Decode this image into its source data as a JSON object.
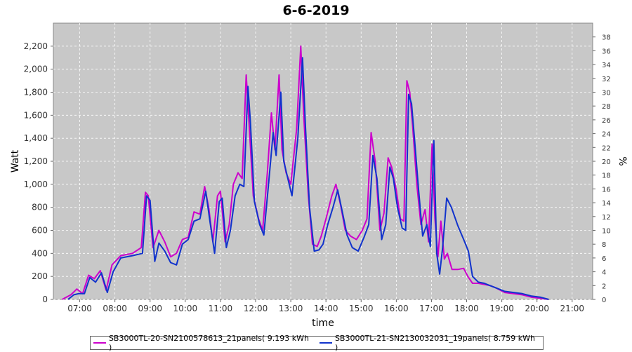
{
  "chart_data": {
    "type": "line",
    "title": "6-6-2019",
    "xlabel": "time",
    "ylabel": "Watt",
    "y2label": "%",
    "ylim": [
      0,
      2400
    ],
    "y2lim": [
      0,
      40
    ],
    "x_ticks": [
      "07:00",
      "08:00",
      "09:00",
      "10:00",
      "11:00",
      "12:00",
      "13:00",
      "14:00",
      "15:00",
      "16:00",
      "17:00",
      "18:00",
      "19:00",
      "20:00",
      "21:00"
    ],
    "y_ticks": [
      "0",
      "200",
      "400",
      "600",
      "800",
      "1,000",
      "1,200",
      "1,400",
      "1,600",
      "1,800",
      "2,000",
      "2,200"
    ],
    "y2_ticks": [
      "0",
      "2",
      "4",
      "6",
      "8",
      "10",
      "12",
      "14",
      "16",
      "18",
      "20",
      "22",
      "24",
      "26",
      "28",
      "30",
      "32",
      "34",
      "36",
      "38"
    ],
    "grid": true,
    "legend_position": "bottom",
    "series": [
      {
        "name": "SB3000TL-20-SN2100578613_21panels( 9.193 kWh )",
        "color": "#cc00cc",
        "points": [
          [
            "06:30",
            0
          ],
          [
            "06:45",
            40
          ],
          [
            "06:55",
            90
          ],
          [
            "07:05",
            50
          ],
          [
            "07:15",
            210
          ],
          [
            "07:25",
            180
          ],
          [
            "07:35",
            250
          ],
          [
            "07:45",
            80
          ],
          [
            "07:55",
            300
          ],
          [
            "08:10",
            380
          ],
          [
            "08:30",
            400
          ],
          [
            "08:45",
            450
          ],
          [
            "08:52",
            930
          ],
          [
            "08:57",
            900
          ],
          [
            "09:05",
            450
          ],
          [
            "09:15",
            600
          ],
          [
            "09:25",
            500
          ],
          [
            "09:35",
            370
          ],
          [
            "09:45",
            400
          ],
          [
            "09:55",
            520
          ],
          [
            "10:05",
            540
          ],
          [
            "10:15",
            760
          ],
          [
            "10:25",
            740
          ],
          [
            "10:33",
            980
          ],
          [
            "10:40",
            800
          ],
          [
            "10:47",
            500
          ],
          [
            "10:55",
            900
          ],
          [
            "11:00",
            940
          ],
          [
            "11:08",
            500
          ],
          [
            "11:15",
            650
          ],
          [
            "11:22",
            1000
          ],
          [
            "11:30",
            1100
          ],
          [
            "11:37",
            1050
          ],
          [
            "11:44",
            1950
          ],
          [
            "11:48",
            1600
          ],
          [
            "11:56",
            900
          ],
          [
            "12:05",
            700
          ],
          [
            "12:12",
            600
          ],
          [
            "12:20",
            1100
          ],
          [
            "12:27",
            1620
          ],
          [
            "12:33",
            1300
          ],
          [
            "12:40",
            1950
          ],
          [
            "12:45",
            1300
          ],
          [
            "12:52",
            1100
          ],
          [
            "13:00",
            1000
          ],
          [
            "13:10",
            1480
          ],
          [
            "13:17",
            2200
          ],
          [
            "13:22",
            1600
          ],
          [
            "13:30",
            900
          ],
          [
            "13:37",
            480
          ],
          [
            "13:45",
            460
          ],
          [
            "13:52",
            550
          ],
          [
            "14:00",
            700
          ],
          [
            "14:10",
            900
          ],
          [
            "14:17",
            1000
          ],
          [
            "14:25",
            820
          ],
          [
            "14:33",
            600
          ],
          [
            "14:42",
            550
          ],
          [
            "14:52",
            520
          ],
          [
            "15:02",
            600
          ],
          [
            "15:10",
            700
          ],
          [
            "15:17",
            1450
          ],
          [
            "15:24",
            1200
          ],
          [
            "15:32",
            600
          ],
          [
            "15:39",
            750
          ],
          [
            "15:46",
            1230
          ],
          [
            "15:52",
            1150
          ],
          [
            "16:00",
            950
          ],
          [
            "16:07",
            700
          ],
          [
            "16:13",
            680
          ],
          [
            "16:18",
            1900
          ],
          [
            "16:23",
            1800
          ],
          [
            "16:28",
            1500
          ],
          [
            "16:35",
            1000
          ],
          [
            "16:42",
            650
          ],
          [
            "16:49",
            780
          ],
          [
            "16:55",
            500
          ],
          [
            "17:01",
            1350
          ],
          [
            "17:06",
            700
          ],
          [
            "17:11",
            370
          ],
          [
            "17:16",
            680
          ],
          [
            "17:22",
            350
          ],
          [
            "17:27",
            400
          ],
          [
            "17:35",
            260
          ],
          [
            "17:45",
            260
          ],
          [
            "17:55",
            270
          ],
          [
            "18:02",
            200
          ],
          [
            "18:10",
            140
          ],
          [
            "18:20",
            140
          ],
          [
            "18:30",
            130
          ],
          [
            "18:40",
            120
          ],
          [
            "18:50",
            100
          ],
          [
            "19:05",
            60
          ],
          [
            "19:20",
            50
          ],
          [
            "19:35",
            40
          ],
          [
            "19:50",
            20
          ],
          [
            "20:05",
            10
          ],
          [
            "20:20",
            0
          ]
        ]
      },
      {
        "name": "SB3000TL-21-SN2130032031_19panels( 8.759 kWh )",
        "color": "#1133cc",
        "points": [
          [
            "06:40",
            0
          ],
          [
            "06:50",
            40
          ],
          [
            "06:58",
            50
          ],
          [
            "07:08",
            50
          ],
          [
            "07:17",
            190
          ],
          [
            "07:27",
            150
          ],
          [
            "07:37",
            230
          ],
          [
            "07:47",
            60
          ],
          [
            "07:57",
            240
          ],
          [
            "08:10",
            360
          ],
          [
            "08:30",
            380
          ],
          [
            "08:47",
            400
          ],
          [
            "08:54",
            900
          ],
          [
            "09:00",
            860
          ],
          [
            "09:08",
            330
          ],
          [
            "09:15",
            490
          ],
          [
            "09:25",
            420
          ],
          [
            "09:35",
            320
          ],
          [
            "09:45",
            300
          ],
          [
            "09:55",
            480
          ],
          [
            "10:05",
            520
          ],
          [
            "10:15",
            680
          ],
          [
            "10:25",
            700
          ],
          [
            "10:35",
            940
          ],
          [
            "10:42",
            680
          ],
          [
            "10:50",
            400
          ],
          [
            "10:58",
            850
          ],
          [
            "11:03",
            880
          ],
          [
            "11:10",
            450
          ],
          [
            "11:17",
            600
          ],
          [
            "11:25",
            900
          ],
          [
            "11:33",
            1000
          ],
          [
            "11:40",
            980
          ],
          [
            "11:47",
            1850
          ],
          [
            "11:51",
            1550
          ],
          [
            "11:58",
            850
          ],
          [
            "12:07",
            650
          ],
          [
            "12:14",
            560
          ],
          [
            "12:22",
            1000
          ],
          [
            "12:30",
            1450
          ],
          [
            "12:35",
            1250
          ],
          [
            "12:43",
            1800
          ],
          [
            "12:48",
            1200
          ],
          [
            "12:55",
            1050
          ],
          [
            "13:02",
            900
          ],
          [
            "13:12",
            1400
          ],
          [
            "13:20",
            2100
          ],
          [
            "13:25",
            1500
          ],
          [
            "13:32",
            800
          ],
          [
            "13:40",
            420
          ],
          [
            "13:48",
            430
          ],
          [
            "13:55",
            480
          ],
          [
            "14:03",
            650
          ],
          [
            "14:12",
            800
          ],
          [
            "14:20",
            950
          ],
          [
            "14:28",
            760
          ],
          [
            "14:36",
            560
          ],
          [
            "14:45",
            450
          ],
          [
            "14:55",
            420
          ],
          [
            "15:05",
            540
          ],
          [
            "15:13",
            650
          ],
          [
            "15:20",
            1250
          ],
          [
            "15:27",
            1050
          ],
          [
            "15:35",
            520
          ],
          [
            "15:42",
            650
          ],
          [
            "15:49",
            1150
          ],
          [
            "15:55",
            1050
          ],
          [
            "16:02",
            800
          ],
          [
            "16:10",
            620
          ],
          [
            "16:16",
            600
          ],
          [
            "16:21",
            1780
          ],
          [
            "16:26",
            1700
          ],
          [
            "16:31",
            1400
          ],
          [
            "16:38",
            950
          ],
          [
            "16:45",
            550
          ],
          [
            "16:52",
            650
          ],
          [
            "16:58",
            460
          ],
          [
            "17:04",
            1380
          ],
          [
            "17:09",
            400
          ],
          [
            "17:14",
            220
          ],
          [
            "17:19",
            450
          ],
          [
            "17:26",
            880
          ],
          [
            "17:34",
            800
          ],
          [
            "17:45",
            640
          ],
          [
            "17:55",
            520
          ],
          [
            "18:03",
            420
          ],
          [
            "18:10",
            200
          ],
          [
            "18:20",
            150
          ],
          [
            "18:30",
            140
          ],
          [
            "18:40",
            120
          ],
          [
            "18:50",
            100
          ],
          [
            "19:05",
            70
          ],
          [
            "19:20",
            60
          ],
          [
            "19:35",
            50
          ],
          [
            "19:50",
            30
          ],
          [
            "20:05",
            20
          ],
          [
            "20:20",
            0
          ]
        ]
      }
    ]
  }
}
